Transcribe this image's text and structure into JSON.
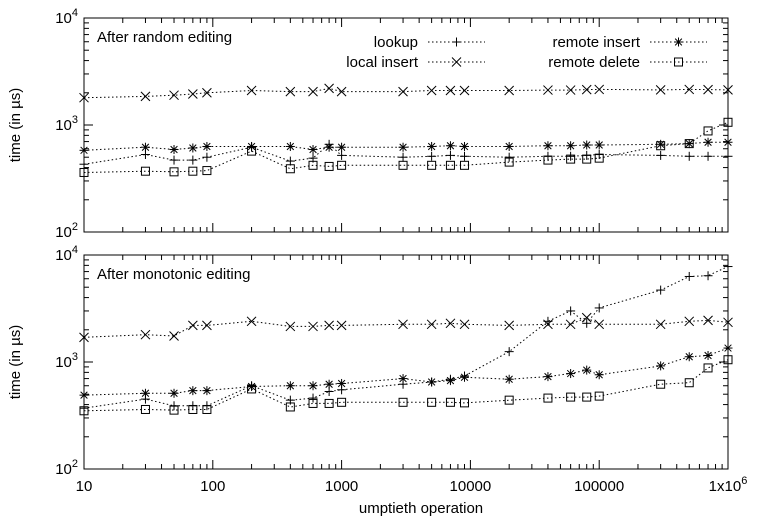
{
  "chart_data": {
    "type": "line",
    "xlabel": "umptieth operation",
    "ylabel": "time (in µs)",
    "xscale": "log",
    "yscale": "log",
    "xlim": [
      10,
      1000000
    ],
    "ylim": [
      100,
      10000
    ],
    "x_ticks": [
      {
        "value": 10,
        "label": "10"
      },
      {
        "value": 100,
        "label": "100"
      },
      {
        "value": 1000,
        "label": "1000"
      },
      {
        "value": 10000,
        "label": "10000"
      },
      {
        "value": 100000,
        "label": "100000"
      },
      {
        "value": 1000000,
        "label": "1x10^6"
      }
    ],
    "y_ticks": [
      {
        "value": 100,
        "label": "10^2"
      },
      {
        "value": 1000,
        "label": "10^3"
      },
      {
        "value": 10000,
        "label": "10^4"
      }
    ],
    "legend_placement": "top",
    "series_styles": [
      {
        "name": "lookup",
        "marker": "plus"
      },
      {
        "name": "local insert",
        "marker": "cross"
      },
      {
        "name": "remote insert",
        "marker": "asterisk"
      },
      {
        "name": "remote delete",
        "marker": "square"
      }
    ],
    "x": [
      10,
      30,
      50,
      70,
      90,
      200,
      400,
      600,
      800,
      1000,
      3000,
      5000,
      7000,
      9000,
      20000,
      40000,
      60000,
      80000,
      100000,
      300000,
      500000,
      700000,
      1000000
    ],
    "panels": [
      {
        "title": "After random editing",
        "series": [
          {
            "name": "lookup",
            "values": [
              430,
              530,
              470,
              470,
              500,
              620,
              460,
              490,
              660,
              520,
              500,
              510,
              520,
              510,
              500,
              510,
              510,
              520,
              530,
              520,
              510,
              510,
              510
            ]
          },
          {
            "name": "local insert",
            "values": [
              1800,
              1850,
              1900,
              1950,
              2000,
              2100,
              2050,
              2050,
              2200,
              2050,
              2050,
              2100,
              2100,
              2100,
              2100,
              2120,
              2120,
              2140,
              2150,
              2130,
              2150,
              2140,
              2130
            ]
          },
          {
            "name": "remote insert",
            "values": [
              580,
              620,
              590,
              610,
              630,
              630,
              630,
              590,
              620,
              620,
              620,
              630,
              640,
              630,
              630,
              640,
              640,
              650,
              650,
              660,
              670,
              690,
              690
            ]
          },
          {
            "name": "remote delete",
            "values": [
              360,
              370,
              365,
              370,
              375,
              570,
              390,
              420,
              410,
              420,
              420,
              420,
              420,
              420,
              450,
              470,
              480,
              480,
              490,
              640,
              670,
              880,
              1060
            ]
          }
        ]
      },
      {
        "title": "After monotonic editing",
        "series": [
          {
            "name": "lookup",
            "values": [
              370,
              450,
              390,
              390,
              390,
              600,
              440,
              460,
              530,
              550,
              620,
              650,
              690,
              740,
              1250,
              2400,
              3000,
              2300,
              3200,
              4700,
              6300,
              6400,
              7800
            ]
          },
          {
            "name": "local insert",
            "values": [
              1700,
              1800,
              1750,
              2200,
              2200,
              2400,
              2150,
              2150,
              2200,
              2200,
              2250,
              2250,
              2300,
              2250,
              2200,
              2250,
              2250,
              2600,
              2250,
              2250,
              2400,
              2450,
              2350
            ]
          },
          {
            "name": "remote insert",
            "values": [
              490,
              510,
              510,
              540,
              540,
              590,
              600,
              600,
              620,
              630,
              700,
              650,
              670,
              720,
              690,
              730,
              780,
              840,
              760,
              920,
              1120,
              1150,
              1350
            ]
          },
          {
            "name": "remote delete",
            "values": [
              350,
              360,
              355,
              360,
              360,
              560,
              380,
              410,
              410,
              420,
              420,
              420,
              420,
              415,
              440,
              460,
              470,
              470,
              480,
              620,
              640,
              880,
              1050
            ]
          }
        ]
      }
    ]
  }
}
